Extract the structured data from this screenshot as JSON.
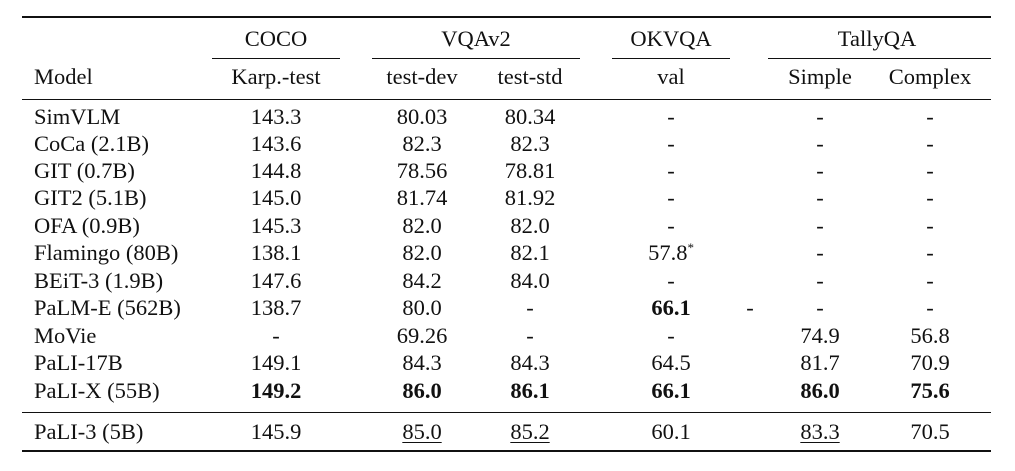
{
  "table": {
    "groups": [
      "COCO",
      "VQAv2",
      "OKVQA",
      "TallyQA"
    ],
    "model_header": "Model",
    "columns": [
      "Karp.-test",
      "test-dev",
      "test-std",
      "val",
      "Simple",
      "Complex"
    ],
    "rows": [
      {
        "model": "SimVLM",
        "cells": [
          "143.3",
          "80.03",
          "80.34",
          "-",
          "-",
          "-"
        ]
      },
      {
        "model": "CoCa (2.1B)",
        "cells": [
          "143.6",
          "82.3",
          "82.3",
          "-",
          "-",
          "-"
        ]
      },
      {
        "model": "GIT (0.7B)",
        "cells": [
          "144.8",
          "78.56",
          "78.81",
          "-",
          "-",
          "-"
        ]
      },
      {
        "model": "GIT2 (5.1B)",
        "cells": [
          "145.0",
          "81.74",
          "81.92",
          "-",
          "-",
          "-"
        ]
      },
      {
        "model": "OFA (0.9B)",
        "cells": [
          "145.3",
          "82.0",
          "82.0",
          "-",
          "-",
          "-"
        ]
      },
      {
        "model": "Flamingo (80B)",
        "cells": [
          "138.1",
          "82.0",
          "82.1",
          "57.8",
          "-",
          "-"
        ],
        "note": "*"
      },
      {
        "model": "BEiT-3 (1.9B)",
        "cells": [
          "147.6",
          "84.2",
          "84.0",
          "-",
          "-",
          "-"
        ]
      },
      {
        "model": "PaLM-E (562B)",
        "cells": [
          "138.7",
          "80.0",
          "-",
          "66.1",
          "-",
          "-"
        ]
      },
      {
        "model": "MoVie",
        "cells": [
          "-",
          "69.26",
          "-",
          "-",
          "74.9",
          "56.8"
        ]
      },
      {
        "model": "PaLI-17B",
        "cells": [
          "149.1",
          "84.3",
          "84.3",
          "64.5",
          "81.7",
          "70.9"
        ]
      },
      {
        "model": "PaLI-X (55B)",
        "cells": [
          "149.2",
          "86.0",
          "86.1",
          "66.1",
          "86.0",
          "75.6"
        ]
      },
      {
        "model": "PaLI-3 (5B)",
        "cells": [
          "145.9",
          "85.0",
          "85.2",
          "60.1",
          "83.3",
          "70.5"
        ]
      }
    ],
    "bold_cells": [
      [
        7,
        3
      ],
      [
        10,
        0
      ],
      [
        10,
        1
      ],
      [
        10,
        2
      ],
      [
        10,
        3
      ],
      [
        10,
        4
      ],
      [
        10,
        5
      ]
    ],
    "underlined_cells": [
      [
        11,
        1
      ],
      [
        11,
        2
      ],
      [
        11,
        4
      ]
    ]
  }
}
